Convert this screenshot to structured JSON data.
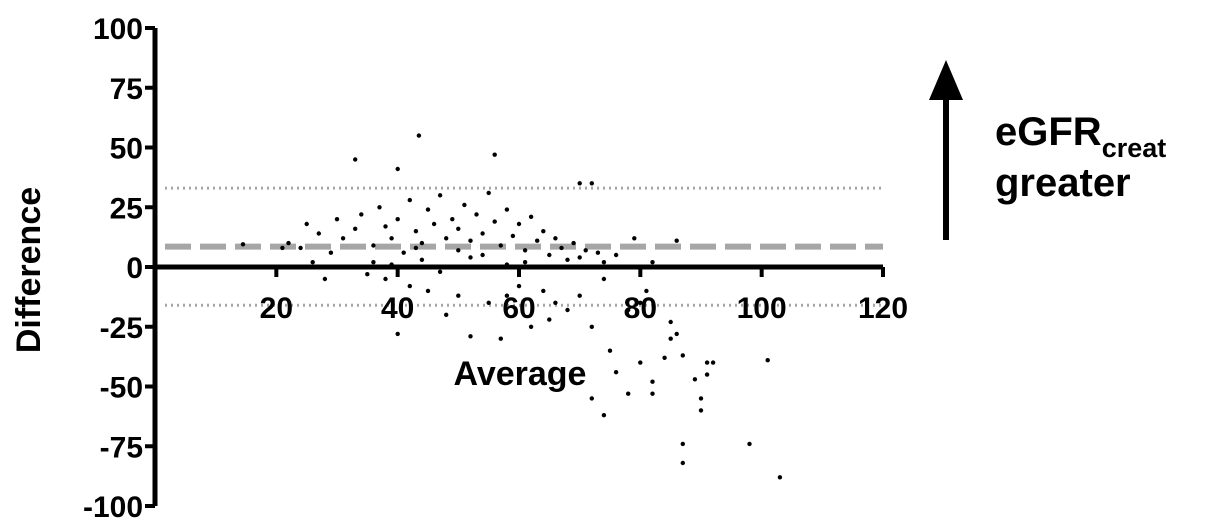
{
  "chart_data": {
    "type": "scatter",
    "xlabel": "Average",
    "ylabel": "Difference",
    "xlim": [
      0,
      120
    ],
    "ylim": [
      -100,
      100
    ],
    "x_ticks": [
      "20",
      "40",
      "60",
      "80",
      "100",
      "120"
    ],
    "y_ticks": [
      "100",
      "75",
      "50",
      "25",
      "0",
      "-25",
      "-50",
      "-75",
      "-100"
    ],
    "reference_lines": {
      "mean_difference": 8.5,
      "upper_limit_of_agreement": 33,
      "lower_limit_of_agreement": -16
    },
    "annotation": {
      "main": "eGFR",
      "subscript": "creat",
      "line2": "greater",
      "arrow": "up-arrow"
    },
    "points": [
      [
        14.5,
        9.5
      ],
      [
        21,
        8
      ],
      [
        33,
        45
      ],
      [
        40,
        41
      ],
      [
        43.5,
        55
      ],
      [
        56,
        47
      ],
      [
        40,
        -28
      ],
      [
        48,
        -20
      ],
      [
        52,
        -29
      ],
      [
        57,
        -30
      ],
      [
        62,
        -25
      ],
      [
        65,
        -22
      ],
      [
        70,
        35
      ],
      [
        72,
        35
      ],
      [
        86,
        11
      ],
      [
        72,
        -25
      ],
      [
        75,
        -35
      ],
      [
        76,
        -44
      ],
      [
        78,
        -53
      ],
      [
        72,
        -55
      ],
      [
        74,
        -62
      ],
      [
        80,
        -40
      ],
      [
        82,
        -48
      ],
      [
        82,
        -53
      ],
      [
        84,
        -38
      ],
      [
        85,
        -23
      ],
      [
        85,
        -30
      ],
      [
        86,
        -28
      ],
      [
        87,
        -37
      ],
      [
        87,
        -74
      ],
      [
        87,
        -82
      ],
      [
        89,
        -47
      ],
      [
        90,
        -55
      ],
      [
        90,
        -60
      ],
      [
        91,
        -40
      ],
      [
        91,
        -45
      ],
      [
        92,
        -40
      ],
      [
        98,
        -74
      ],
      [
        101,
        -39
      ],
      [
        103,
        -88
      ],
      [
        78,
        -18
      ],
      [
        80,
        -15
      ],
      [
        81,
        -10
      ],
      [
        82,
        2
      ],
      [
        79,
        12
      ],
      [
        76,
        5
      ],
      [
        74,
        -5
      ],
      [
        70,
        -12
      ],
      [
        68,
        -18
      ],
      [
        66,
        -15
      ],
      [
        64,
        -10
      ],
      [
        60,
        -8
      ],
      [
        58,
        -12
      ],
      [
        55,
        -15
      ],
      [
        50,
        -12
      ],
      [
        45,
        -10
      ],
      [
        42,
        -8
      ],
      [
        38,
        -5
      ],
      [
        35,
        -3
      ],
      [
        32,
        0
      ],
      [
        28,
        -5
      ],
      [
        26,
        2
      ],
      [
        24,
        8
      ],
      [
        22,
        10
      ],
      [
        25,
        18
      ],
      [
        27,
        14
      ],
      [
        30,
        20
      ],
      [
        29,
        6
      ],
      [
        31,
        12
      ],
      [
        33,
        16
      ],
      [
        34,
        22
      ],
      [
        36,
        9
      ],
      [
        37,
        25
      ],
      [
        38,
        17
      ],
      [
        39,
        12
      ],
      [
        40,
        20
      ],
      [
        41,
        6
      ],
      [
        42,
        28
      ],
      [
        43,
        15
      ],
      [
        44,
        10
      ],
      [
        45,
        24
      ],
      [
        46,
        18
      ],
      [
        47,
        30
      ],
      [
        48,
        12
      ],
      [
        49,
        20
      ],
      [
        50,
        16
      ],
      [
        51,
        26
      ],
      [
        52,
        11
      ],
      [
        53,
        22
      ],
      [
        54,
        14
      ],
      [
        55,
        31
      ],
      [
        56,
        19
      ],
      [
        57,
        9
      ],
      [
        58,
        24
      ],
      [
        59,
        13
      ],
      [
        60,
        18
      ],
      [
        61,
        7
      ],
      [
        62,
        21
      ],
      [
        63,
        11
      ],
      [
        64,
        15
      ],
      [
        65,
        5
      ],
      [
        66,
        12
      ],
      [
        67,
        8
      ],
      [
        68,
        3
      ],
      [
        69,
        10
      ],
      [
        70,
        4
      ],
      [
        71,
        7
      ],
      [
        72,
        0
      ],
      [
        73,
        6
      ],
      [
        74,
        2
      ],
      [
        36,
        2
      ],
      [
        44,
        3
      ],
      [
        52,
        4
      ],
      [
        58,
        1
      ],
      [
        47,
        -2
      ],
      [
        39,
        1
      ],
      [
        54,
        5
      ],
      [
        61,
        2
      ],
      [
        43,
        8
      ],
      [
        50,
        7
      ]
    ]
  }
}
